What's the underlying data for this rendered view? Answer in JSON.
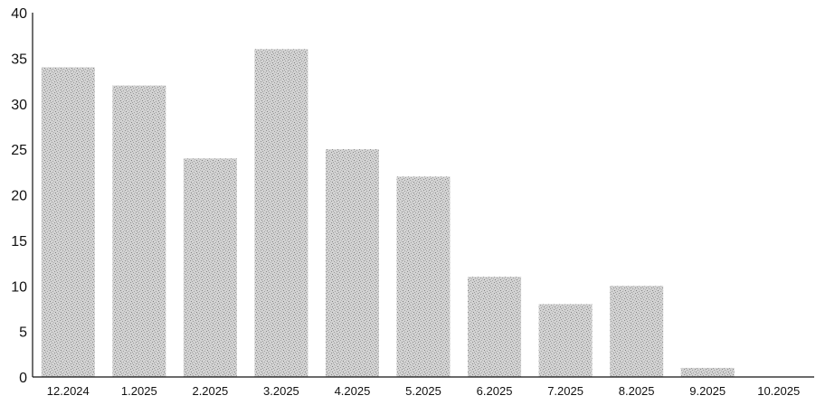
{
  "chart_data": {
    "type": "bar",
    "title": "",
    "xlabel": "",
    "ylabel": "",
    "categories": [
      "12.2024",
      "1.2025",
      "2.2025",
      "3.2025",
      "4.2025",
      "5.2025",
      "6.2025",
      "7.2025",
      "8.2025",
      "9.2025",
      "10.2025"
    ],
    "values": [
      34,
      32,
      24,
      36,
      25,
      22,
      11,
      8,
      10,
      1,
      0
    ],
    "ylim": [
      0,
      40
    ],
    "yticks": [
      0,
      5,
      10,
      15,
      20,
      25,
      30,
      35,
      40
    ],
    "grid": false,
    "legend": "none",
    "bar_color": "#c8c8c8"
  }
}
